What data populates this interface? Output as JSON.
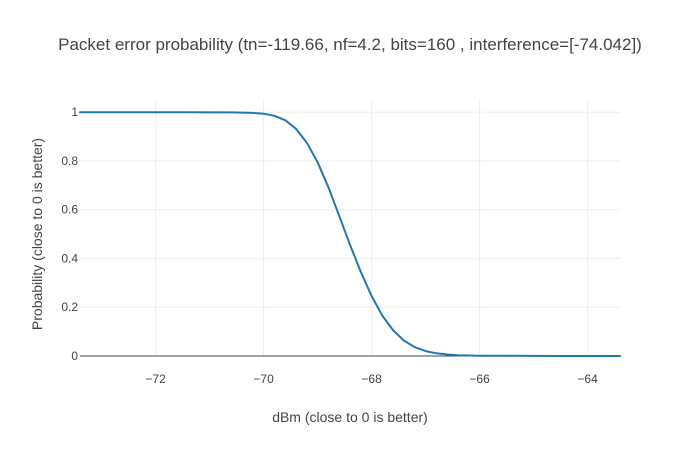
{
  "chart_data": {
    "type": "line",
    "title": "Packet error probability (tn=-119.66, nf=4.2, bits=160 , interference=[-74.042])",
    "xlabel": "dBm (close to 0 is better)",
    "ylabel": "Probability (close to 0 is better)",
    "xlim": [
      -73.4,
      -63.4
    ],
    "ylim": [
      0,
      1.05
    ],
    "xticks": [
      -72,
      -70,
      -68,
      -66,
      -64
    ],
    "xtick_labels": [
      "−72",
      "−70",
      "−68",
      "−66",
      "−64"
    ],
    "yticks": [
      0,
      0.2,
      0.4,
      0.6,
      0.8,
      1
    ],
    "ytick_labels": [
      "0",
      "0.2",
      "0.4",
      "0.6",
      "0.8",
      "1"
    ],
    "grid": true,
    "legend": "none",
    "color": "#1f77b4",
    "series": [
      {
        "x": [
          -73.4,
          -72.5,
          -71.5,
          -70.6,
          -70.2,
          -70.0,
          -69.8,
          -69.6,
          -69.4,
          -69.2,
          -69.0,
          -68.8,
          -68.6,
          -68.4,
          -68.2,
          -68.0,
          -67.8,
          -67.6,
          -67.4,
          -67.2,
          -67.0,
          -66.8,
          -66.6,
          -66.4,
          -66.2,
          -66.0,
          -65.5,
          -65.0,
          -64.5,
          -64.0,
          -63.4
        ],
        "y": [
          1.0,
          1.0,
          1.0,
          0.999,
          0.997,
          0.994,
          0.985,
          0.967,
          0.932,
          0.875,
          0.795,
          0.692,
          0.575,
          0.456,
          0.345,
          0.246,
          0.165,
          0.105,
          0.063,
          0.036,
          0.02,
          0.011,
          0.006,
          0.003,
          0.002,
          0.001,
          0.0007,
          0.0004,
          0.0002,
          0.0001,
          0.0
        ]
      }
    ]
  }
}
